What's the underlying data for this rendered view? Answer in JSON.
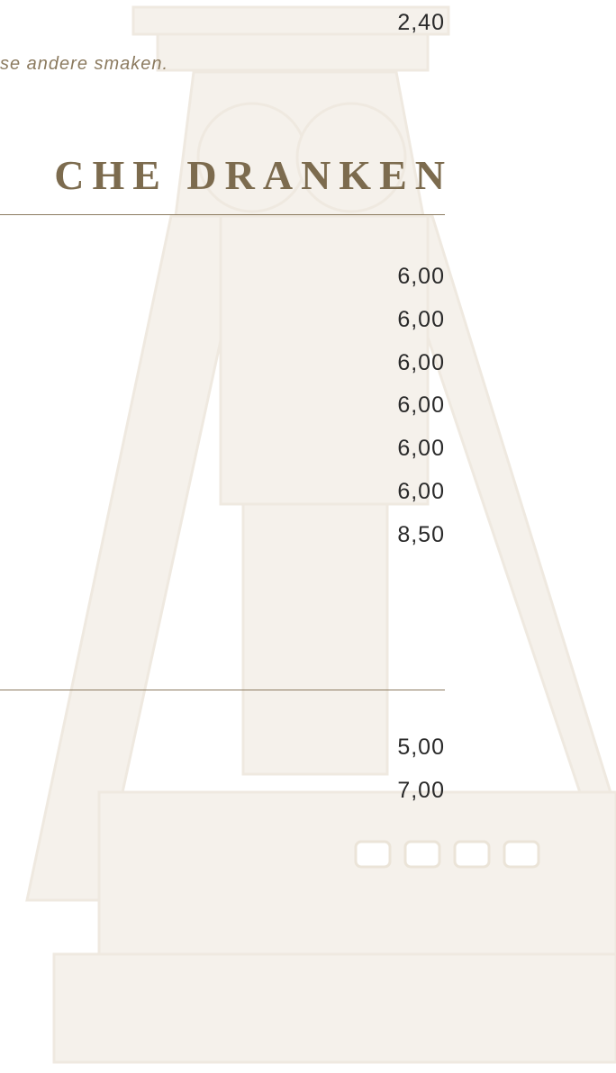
{
  "top_item": {
    "price": "2,40",
    "note": "se andere smaken."
  },
  "section": {
    "title": "CHE DRANKEN",
    "prices": [
      "6,00",
      "6,00",
      "6,00",
      "6,00",
      "6,00",
      "6,00",
      "8,50"
    ]
  },
  "section2": {
    "prices": [
      "5,00",
      "7,00"
    ]
  }
}
